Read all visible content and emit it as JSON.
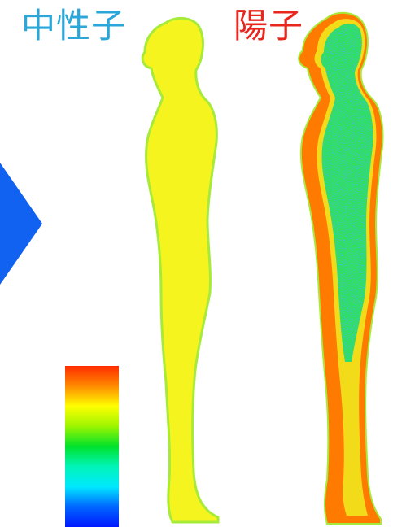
{
  "labels": {
    "neutron": "中性子",
    "proton": "陽子"
  },
  "colors": {
    "neutron_label": "#2aa7d8",
    "proton_label": "#e8261c",
    "arrow": "#1162f0",
    "neutron_body": "#f6f41e",
    "neutron_edge": "#a6ea3a",
    "proton_body": "#2ee060",
    "proton_edge": "#ff7a00",
    "proton_mid": "#f2dc1a"
  },
  "color_scale": {
    "stops": [
      "#ff2b00",
      "#ff8a00",
      "#ffff00",
      "#9cf500",
      "#00e22b",
      "#00f5b8",
      "#00e8ff",
      "#0066ff",
      "#0018ff"
    ]
  },
  "icons": [
    "right-arrow-icon"
  ]
}
